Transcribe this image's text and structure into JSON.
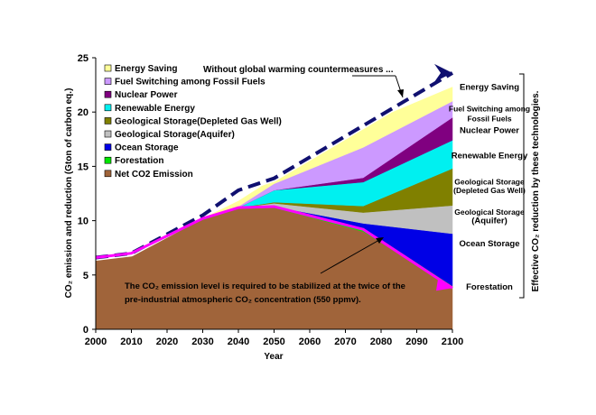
{
  "chart_data": {
    "type": "area",
    "stacked": true,
    "xlabel": "Year",
    "ylabel": "CO₂ emission and reduction (Gton of carbon eq.)",
    "xlim": [
      2000,
      2100
    ],
    "ylim": [
      0,
      25
    ],
    "x_ticks": [
      "2000",
      "2010",
      "2020",
      "2030",
      "2040",
      "2050",
      "2060",
      "2070",
      "2080",
      "2090",
      "2100"
    ],
    "y_ticks": [
      "0",
      "5",
      "10",
      "15",
      "20",
      "25"
    ],
    "x": [
      2000,
      2010,
      2030,
      2040,
      2050,
      2075,
      2100
    ],
    "series": [
      {
        "name": "Net CO2 Emission",
        "color": "#a0643a",
        "values": [
          6.6,
          7.0,
          10.2,
          11.2,
          11.2,
          9.0,
          4.0
        ]
      },
      {
        "name": "Forestation",
        "color": "#00e600",
        "values": [
          0,
          0,
          0,
          0,
          0,
          0.35,
          0
        ]
      },
      {
        "name": "Ocean Storage",
        "color": "#0000e6",
        "values": [
          0,
          0,
          0,
          0,
          0.1,
          0.4,
          4.8
        ]
      },
      {
        "name": "Geological Storage(Aquifer)",
        "color": "#c0c0c0",
        "values": [
          0,
          0,
          0,
          0,
          0.3,
          1.0,
          2.6
        ]
      },
      {
        "name": "Geological Storage(Depleted Gas Well)",
        "color": "#808000",
        "values": [
          0,
          0,
          0,
          0,
          0.1,
          0.6,
          3.4
        ]
      },
      {
        "name": "Renewable Energy",
        "color": "#00f0f0",
        "values": [
          0,
          0,
          0,
          0,
          1.1,
          2.2,
          2.6
        ]
      },
      {
        "name": "Nuclear Power",
        "color": "#800080",
        "values": [
          0,
          0,
          0,
          0,
          0,
          0.4,
          2.1
        ]
      },
      {
        "name": "Fuel Switching among Fossil Fuels",
        "color": "#cc99ff",
        "values": [
          0,
          0,
          0,
          0.1,
          0.6,
          2.8,
          1.5
        ]
      },
      {
        "name": "Energy Saving",
        "color": "#ffff99",
        "values": [
          0,
          0,
          0,
          0.5,
          0.5,
          2.1,
          1.3
        ]
      }
    ],
    "without_countermeasures_line": {
      "label": "Without global warming countermeasures ...",
      "x": [
        2000,
        2010,
        2030,
        2040,
        2050,
        2100
      ],
      "values": [
        6.6,
        7.0,
        10.5,
        12.8,
        13.9,
        23.6
      ]
    },
    "stabilized_line": {
      "x": [
        2000,
        2010,
        2030,
        2040,
        2050,
        2075,
        2100
      ],
      "values": [
        6.6,
        7.0,
        10.2,
        11.2,
        11.3,
        9.2,
        3.8
      ]
    },
    "legend_order": [
      "Energy Saving",
      "Fuel Switching among Fossil Fuels",
      "Nuclear Power",
      "Renewable Energy",
      "Geological Storage(Depleted Gas Well)",
      "Geological Storage(Aquifer)",
      "Ocean Storage",
      "Forestation",
      "Net CO2 Emission"
    ],
    "legend_placement": "top-left",
    "grid": false,
    "side_labels": [
      {
        "text": "Energy Saving",
        "y": 22.3
      },
      {
        "text": "Fuel Switching among",
        "y": 20.3
      },
      {
        "text": "Fossil Fuels",
        "y": 19.4
      },
      {
        "text": "Nuclear Power",
        "y": 18.3
      },
      {
        "text": "Renewable Energy",
        "y": 16.0
      },
      {
        "text": "Geological Storage",
        "y": 13.6
      },
      {
        "text": "(Depleted Gas Well)",
        "y": 12.8
      },
      {
        "text": "Geological Storage",
        "y": 10.8
      },
      {
        "text": "(Aquifer)",
        "y": 10.0
      },
      {
        "text": "Ocean Storage",
        "y": 7.9
      },
      {
        "text": "Forestation",
        "y": 3.9
      }
    ],
    "side_bracket_label": "Effective CO₂ reduction by these technologies.",
    "annotation": {
      "line1": "The CO₂ emission level is required to be stabilized at the twice of the",
      "line2": "pre-industrial atmospheric CO₂ concentration (550 ppmv)."
    }
  }
}
